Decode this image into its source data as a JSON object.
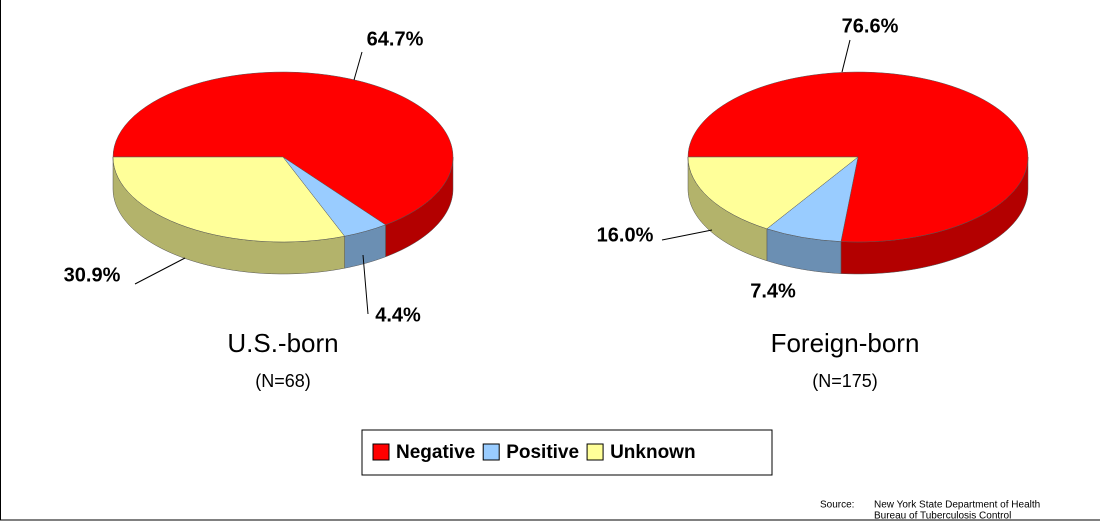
{
  "chart_data": [
    {
      "type": "pie",
      "title": "U.S.-born",
      "subtitle": "(N=68)",
      "categories": [
        "Negative",
        "Positive",
        "Unknown"
      ],
      "values": [
        64.7,
        4.4,
        30.9
      ],
      "value_labels": [
        "64.7%",
        "4.4%",
        "30.9%"
      ],
      "colors": [
        "#ff0000",
        "#99ccff",
        "#ffff99"
      ]
    },
    {
      "type": "pie",
      "title": "Foreign-born",
      "subtitle": "(N=175)",
      "categories": [
        "Negative",
        "Positive",
        "Unknown"
      ],
      "values": [
        76.6,
        7.4,
        16.0
      ],
      "value_labels": [
        "76.6%",
        "7.4%",
        "16.0%"
      ],
      "colors": [
        "#ff0000",
        "#99ccff",
        "#ffff99"
      ]
    }
  ],
  "source": {
    "label": "Source:",
    "lines": [
      "New York State Department of Health",
      "Bureau of Tuberculosis Control"
    ]
  }
}
